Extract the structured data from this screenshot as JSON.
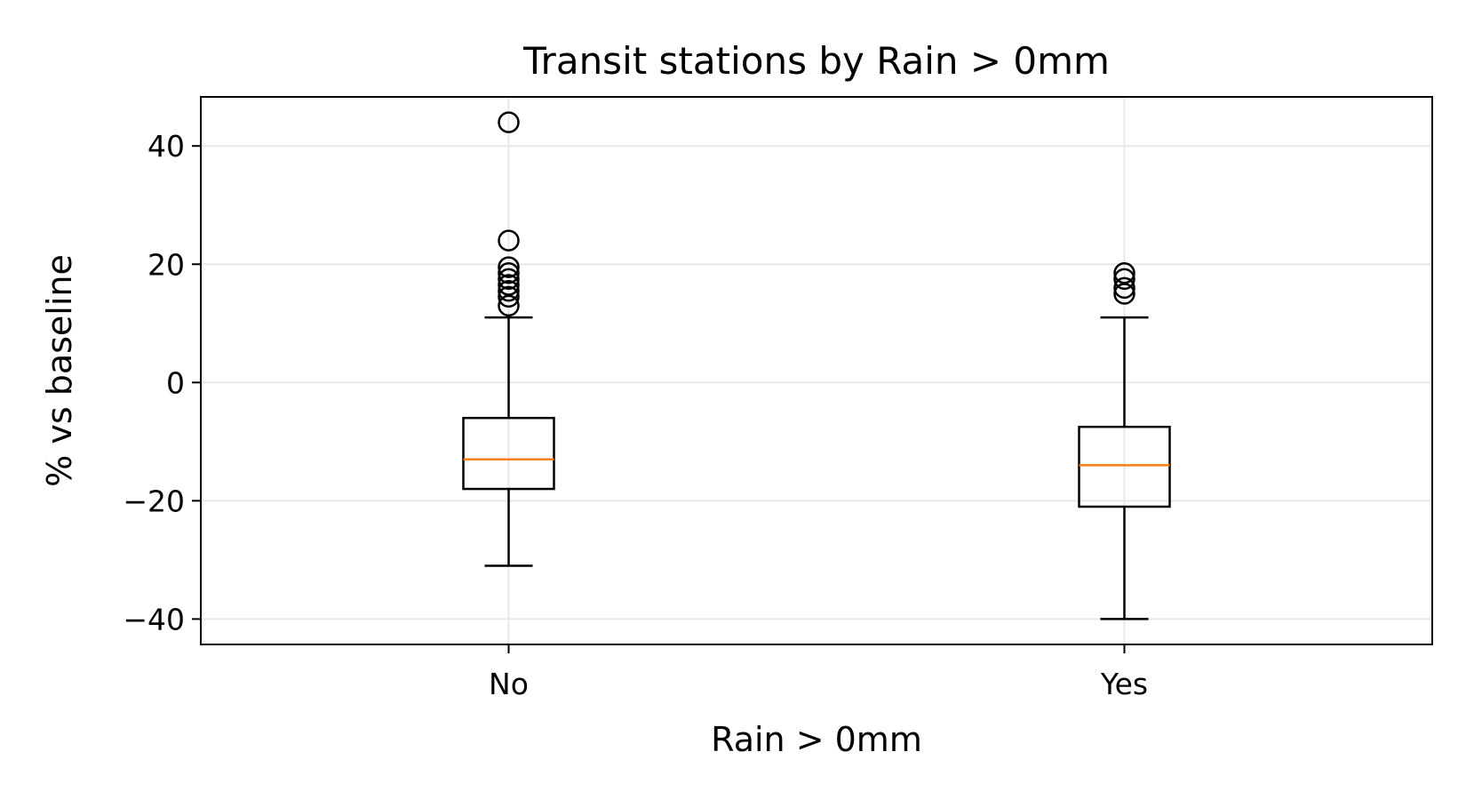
{
  "chart_data": {
    "type": "box",
    "title": "Transit stations by Rain > 0mm",
    "xlabel": "Rain > 0mm",
    "ylabel": "% vs baseline",
    "categories": [
      "No",
      "Yes"
    ],
    "ylim": [
      -44.3,
      48.3
    ],
    "yticks": [
      -40,
      -20,
      0,
      20,
      40
    ],
    "ytick_labels": [
      "−40",
      "−20",
      "0",
      "20",
      "40"
    ],
    "grid": true,
    "boxes": [
      {
        "category": "No",
        "whisker_low": -31,
        "q1": -18,
        "median": -13,
        "q3": -6,
        "whisker_high": 11,
        "outliers": [
          13,
          14.5,
          15.5,
          16.5,
          17.5,
          18.5,
          19.5,
          24,
          44
        ]
      },
      {
        "category": "Yes",
        "whisker_low": -40,
        "q1": -21,
        "median": -14,
        "q3": -7.5,
        "whisker_high": 11,
        "outliers": [
          15,
          16,
          17.5,
          18.5
        ]
      }
    ],
    "colors": {
      "median": "#ff7f0e",
      "box": "#000000",
      "grid": "#e8e8e8"
    }
  }
}
